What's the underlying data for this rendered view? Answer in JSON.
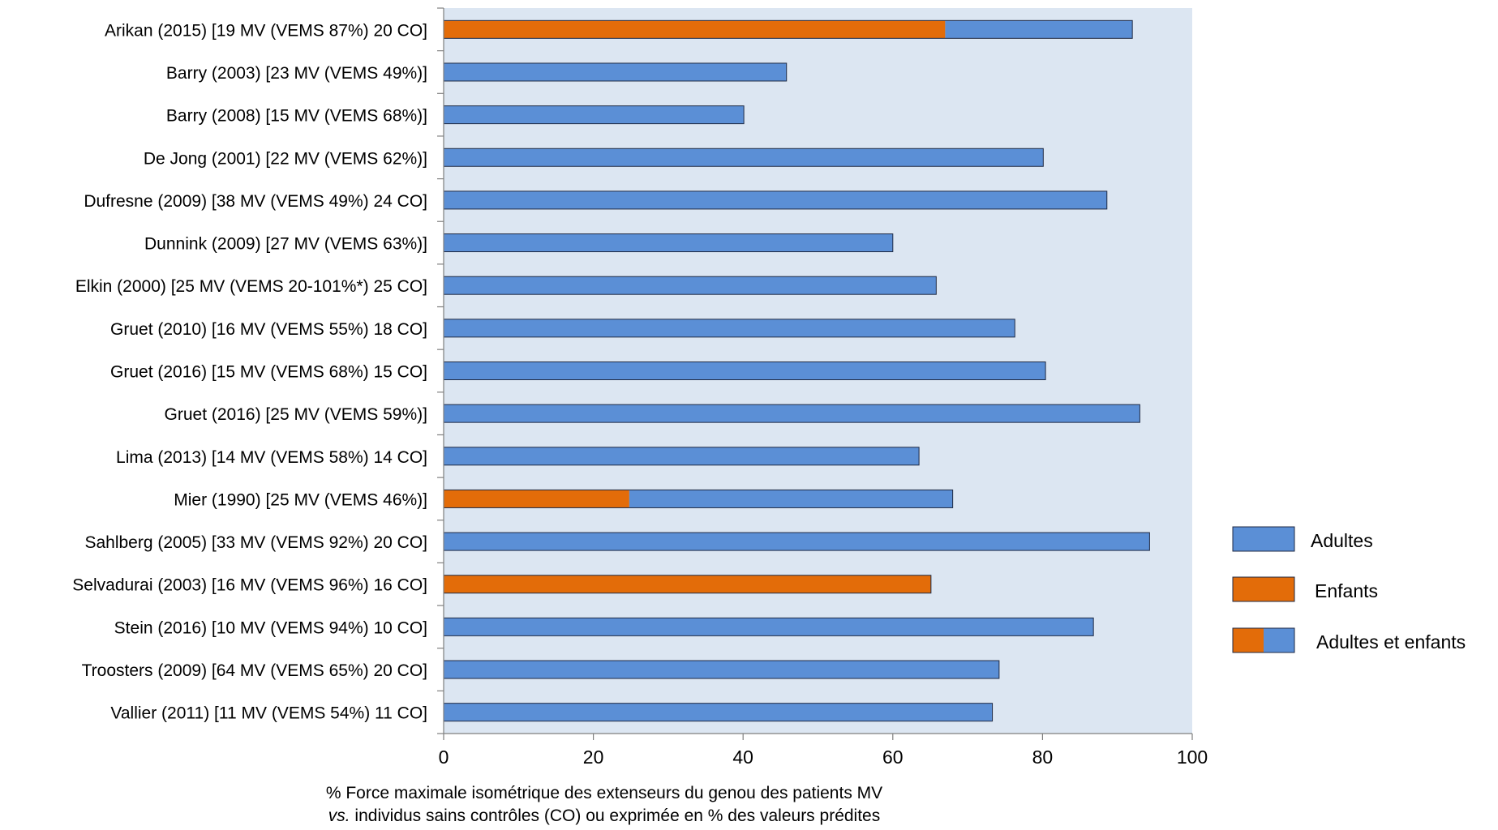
{
  "chart_data": {
    "type": "bar",
    "orientation": "horizontal",
    "categories": [
      "Arikan (2015)  [19 MV (VEMS 87%) 20 CO]",
      "Barry (2003)  [23 MV (VEMS 49%)]",
      "Barry (2008)  [15 MV (VEMS 68%)]",
      "De Jong (2001)  [22 MV (VEMS 62%)]",
      "Dufresne (2009)  [38 MV (VEMS 49%) 24 CO]",
      "Dunnink (2009)  [27 MV (VEMS 63%)]",
      "Elkin (2000) [25 MV (VEMS 20-101%*) 25 CO]",
      "Gruet (2010)  [16 MV (VEMS 55%) 18 CO]",
      "Gruet (2016)  [15 MV (VEMS 68%) 15 CO]",
      "Gruet (2016) [25 MV (VEMS 59%)]",
      "Lima (2013)  [14 MV (VEMS 58%) 14 CO]",
      "Mier (1990)  [25 MV (VEMS 46%)]",
      "Sahlberg (2005)  [33 MV (VEMS 92%) 20 CO]",
      "Selvadurai  (2003)  [16 MV (VEMS 96%) 16 CO]",
      "Stein (2016) [10 MV (VEMS 94%) 10 CO]",
      "Troosters (2009)  [64 MV (VEMS 65%) 20 CO]",
      "Vallier (2011)  [11 MV (VEMS 54%) 11 CO]"
    ],
    "groups": [
      "mixed",
      "adult",
      "adult",
      "adult",
      "adult",
      "adult",
      "adult",
      "adult",
      "adult",
      "adult",
      "adult",
      "mixed",
      "adult",
      "child",
      "adult",
      "adult",
      "adult"
    ],
    "values": [
      92,
      45.8,
      40.1,
      80.1,
      88.6,
      60,
      65.8,
      76.3,
      80.4,
      93,
      63.5,
      68,
      94.3,
      65.1,
      86.8,
      74.2,
      73.3
    ],
    "child_part": [
      67,
      0,
      0,
      0,
      0,
      0,
      0,
      0,
      0,
      0,
      0,
      24.8,
      0,
      65.1,
      0,
      0,
      0
    ],
    "xlim": [
      0,
      100
    ],
    "xticks": [
      "0",
      "20",
      "40",
      "60",
      "80",
      "100"
    ],
    "xlabel_line1": "% Force maximale isométrique des extenseurs du genou des patients MV",
    "xlabel_line2_italic": "vs.",
    "xlabel_line2_rest": " individus sains contrôles (CO) ou exprimée en % des valeurs prédites",
    "legend": [
      {
        "key": "adult",
        "label": "Adultes"
      },
      {
        "key": "child",
        "label": "Enfants"
      },
      {
        "key": "mixed",
        "label": "Adultes et enfants"
      }
    ],
    "legend_position": "right",
    "grid": false,
    "colors": {
      "adult": "#5b8fd6",
      "child": "#e36c09",
      "plot_bg": "#dce6f2",
      "bar_edge": "#1f2a44"
    }
  }
}
